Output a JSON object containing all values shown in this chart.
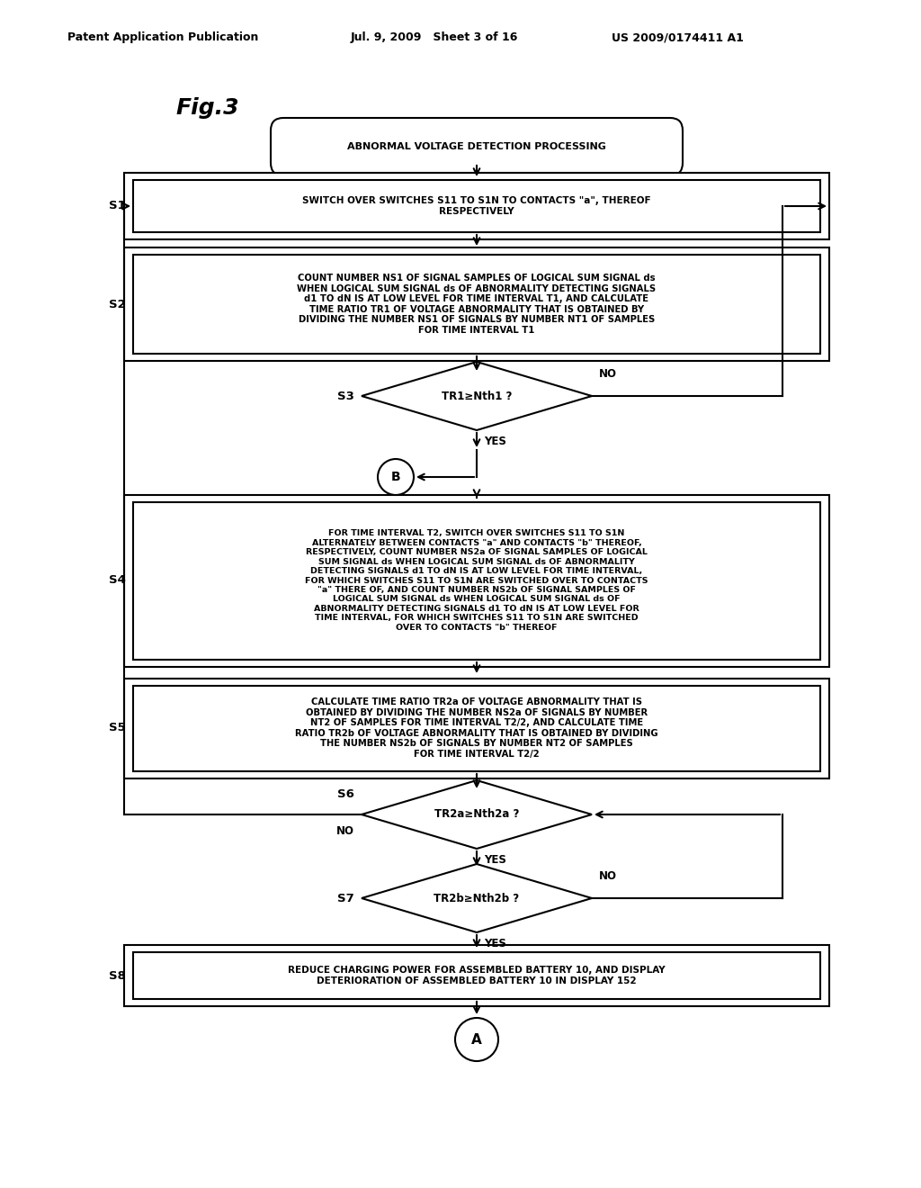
{
  "bg_color": "#ffffff",
  "header_left": "Patent Application Publication",
  "header_mid": "Jul. 9, 2009   Sheet 3 of 16",
  "header_right": "US 2009/0174411 A1",
  "fig_label": "Fig.3",
  "title_box": "ABNORMAL VOLTAGE DETECTION PROCESSING",
  "s1_label": "S1",
  "s1_text": "SWITCH OVER SWITCHES S11 TO S1N TO CONTACTS \"a\", THEREOF\nRESPECTIVELY",
  "s2_label": "S2",
  "s2_text": "COUNT NUMBER NS1 OF SIGNAL SAMPLES OF LOGICAL SUM SIGNAL ds\nWHEN LOGICAL SUM SIGNAL ds OF ABNORMALITY DETECTING SIGNALS\nd1 TO dN IS AT LOW LEVEL FOR TIME INTERVAL T1, AND CALCULATE\nTIME RATIO TR1 OF VOLTAGE ABNORMALITY THAT IS OBTAINED BY\nDIVIDING THE NUMBER NS1 OF SIGNALS BY NUMBER NT1 OF SAMPLES\nFOR TIME INTERVAL T1",
  "s3_label": "S3",
  "s3_text": "TR1≥Nth1 ?",
  "s3_no": "NO",
  "s3_yes": "YES",
  "b_label": "B",
  "s4_label": "S4",
  "s4_text": "FOR TIME INTERVAL T2, SWITCH OVER SWITCHES S11 TO S1N\nALTERNATELY BETWEEN CONTACTS \"a\" AND CONTACTS \"b\" THEREOF,\nRESPECTIVELY, COUNT NUMBER NS2a OF SIGNAL SAMPLES OF LOGICAL\nSUM SIGNAL ds WHEN LOGICAL SUM SIGNAL ds OF ABNORMALITY\nDETECTING SIGNALS d1 TO dN IS AT LOW LEVEL FOR TIME INTERVAL,\nFOR WHICH SWITCHES S11 TO S1N ARE SWITCHED OVER TO CONTACTS\n\"a\" THERE OF, AND COUNT NUMBER NS2b OF SIGNAL SAMPLES OF\nLOGICAL SUM SIGNAL ds WHEN LOGICAL SUM SIGNAL ds OF\nABNORMALITY DETECTING SIGNALS d1 TO dN IS AT LOW LEVEL FOR\nTIME INTERVAL, FOR WHICH SWITCHES S11 TO S1N ARE SWITCHED\nOVER TO CONTACTS \"b\" THEREOF",
  "s5_label": "S5",
  "s5_text": "CALCULATE TIME RATIO TR2a OF VOLTAGE ABNORMALITY THAT IS\nOBTAINED BY DIVIDING THE NUMBER NS2a OF SIGNALS BY NUMBER\nNT2 OF SAMPLES FOR TIME INTERVAL T2/2, AND CALCULATE TIME\nRATIO TR2b OF VOLTAGE ABNORMALITY THAT IS OBTAINED BY DIVIDING\nTHE NUMBER NS2b OF SIGNALS BY NUMBER NT2 OF SAMPLES\nFOR TIME INTERVAL T2/2",
  "s6_label": "S6",
  "s6_text": "TR2a≥Nth2a ?",
  "s6_no": "NO",
  "s6_yes": "YES",
  "s7_label": "S7",
  "s7_text": "TR2b≥Nth2b ?",
  "s7_no": "NO",
  "s7_yes": "YES",
  "s8_label": "S8",
  "s8_text": "REDUCE CHARGING POWER FOR ASSEMBLED BATTERY 10, AND DISPLAY\nDETERIORATION OF ASSEMBLED BATTERY 10 IN DISPLAY 152",
  "a_label": "A",
  "lw": 1.5
}
